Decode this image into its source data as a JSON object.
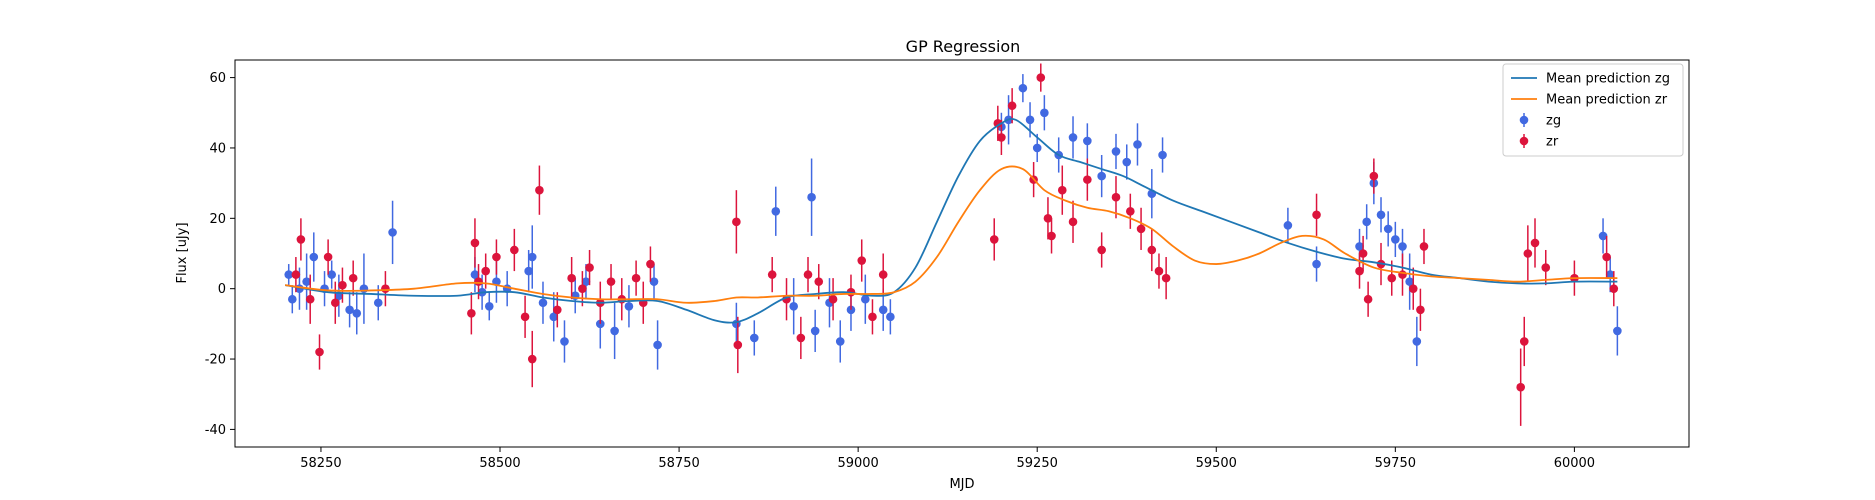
{
  "chart_data": {
    "type": "scatter",
    "title": "GP Regression",
    "xlabel": "MJD",
    "ylabel": "Flux [uJy]",
    "xlim": [
      58130,
      60160
    ],
    "ylim": [
      -45,
      65
    ],
    "xticks": [
      58250,
      58500,
      58750,
      59000,
      59250,
      59500,
      59750,
      60000
    ],
    "yticks": [
      -40,
      -20,
      0,
      20,
      40,
      60
    ],
    "grid": false,
    "legend_position": "top-right",
    "series": [
      {
        "name": "Mean prediction zg",
        "kind": "line",
        "color": "#1f77b4",
        "x": [
          58200,
          58260,
          58320,
          58380,
          58440,
          58480,
          58520,
          58560,
          58600,
          58640,
          58680,
          58720,
          58760,
          58800,
          58830,
          58860,
          58900,
          58940,
          58980,
          59020,
          59050,
          59080,
          59110,
          59140,
          59170,
          59200,
          59220,
          59250,
          59280,
          59310,
          59340,
          59370,
          59400,
          59440,
          59480,
          59520,
          59560,
          59600,
          59640,
          59680,
          59720,
          59760,
          59800,
          59840,
          59880,
          59920,
          59960,
          60000,
          60060
        ],
        "y": [
          1,
          -1,
          -1.5,
          -2,
          -2,
          -1,
          -1,
          -2.5,
          -3.5,
          -4,
          -3.5,
          -3.5,
          -6,
          -9,
          -9.5,
          -7,
          -2.5,
          -1.5,
          -1,
          -2,
          -1,
          6,
          19,
          32,
          42,
          47,
          48,
          43,
          38,
          36,
          34,
          32,
          29,
          25,
          22,
          19,
          16,
          13,
          10.5,
          8.5,
          7.5,
          6,
          4,
          3,
          2,
          1.5,
          1.5,
          2,
          2
        ]
      },
      {
        "name": "Mean prediction zr",
        "kind": "line",
        "color": "#ff7f0e",
        "x": [
          58200,
          58260,
          58320,
          58380,
          58440,
          58480,
          58520,
          58560,
          58600,
          58640,
          58680,
          58720,
          58760,
          58800,
          58830,
          58860,
          58900,
          58940,
          58980,
          59020,
          59050,
          59080,
          59110,
          59140,
          59170,
          59200,
          59230,
          59260,
          59290,
          59320,
          59350,
          59380,
          59410,
          59440,
          59470,
          59500,
          59530,
          59560,
          59590,
          59620,
          59650,
          59680,
          59720,
          59760,
          59800,
          59840,
          59880,
          59920,
          59960,
          60000,
          60060
        ],
        "y": [
          1,
          -0.5,
          -0.5,
          0,
          1.5,
          1.5,
          0,
          -1.5,
          -2.5,
          -3,
          -3,
          -3,
          -4,
          -3.5,
          -2.5,
          -2.5,
          -2,
          -2,
          -1.5,
          -1.5,
          -1,
          2,
          9,
          19,
          28,
          34,
          34,
          28,
          25,
          23,
          22,
          20,
          17,
          12,
          8,
          7,
          8,
          10,
          13,
          15,
          14,
          10,
          6,
          4.5,
          3.5,
          3,
          2.5,
          2,
          2.5,
          3,
          3
        ]
      },
      {
        "name": "zg",
        "kind": "errorbar",
        "color": "#4169e1",
        "x": [
          58205,
          58210,
          58220,
          58230,
          58240,
          58255,
          58265,
          58275,
          58290,
          58300,
          58310,
          58330,
          58350,
          58465,
          58475,
          58485,
          58495,
          58510,
          58540,
          58545,
          58560,
          58575,
          58590,
          58605,
          58620,
          58640,
          58660,
          58680,
          58715,
          58720,
          58830,
          58855,
          58885,
          58910,
          58935,
          58940,
          58960,
          58975,
          58990,
          59010,
          59035,
          59045,
          59200,
          59210,
          59230,
          59240,
          59250,
          59260,
          59280,
          59300,
          59320,
          59340,
          59360,
          59375,
          59390,
          59410,
          59425,
          59600,
          59640,
          59700,
          59710,
          59720,
          59730,
          59740,
          59750,
          59760,
          59770,
          59780,
          60040,
          60050,
          60060
        ],
        "y": [
          4,
          -3,
          0,
          2,
          9,
          0,
          4,
          -2,
          -6,
          -7,
          0,
          -4,
          16,
          4,
          -1,
          -5,
          2,
          0,
          5,
          9,
          -4,
          -8,
          -15,
          -2,
          2,
          -10,
          -12,
          -5,
          2,
          -16,
          -10,
          -14,
          22,
          -5,
          26,
          -12,
          -4,
          -15,
          -6,
          -3,
          -6,
          -8,
          46,
          48,
          57,
          48,
          40,
          50,
          38,
          43,
          42,
          32,
          39,
          36,
          41,
          27,
          38,
          18,
          7,
          12,
          19,
          30,
          21,
          17,
          14,
          12,
          2,
          -15,
          15,
          4,
          -12
        ],
        "yerr": [
          3,
          4,
          6,
          8,
          7,
          5,
          4,
          6,
          5,
          6,
          10,
          5,
          9,
          5,
          5,
          4,
          6,
          5,
          6,
          9,
          6,
          7,
          6,
          5,
          5,
          7,
          8,
          6,
          5,
          7,
          6,
          5,
          7,
          8,
          11,
          6,
          7,
          6,
          6,
          7,
          6,
          5,
          4,
          7,
          4,
          5,
          4,
          5,
          5,
          6,
          5,
          6,
          5,
          5,
          6,
          7,
          5,
          5,
          5,
          5,
          5,
          6,
          5,
          5,
          5,
          5,
          8,
          7,
          5,
          5,
          7
        ]
      },
      {
        "name": "zr",
        "kind": "errorbar",
        "color": "#dc143c",
        "x": [
          58215,
          58222,
          58235,
          58248,
          58260,
          58270,
          58280,
          58295,
          58340,
          58460,
          58465,
          58470,
          58480,
          58495,
          58520,
          58535,
          58545,
          58555,
          58580,
          58600,
          58615,
          58625,
          58640,
          58655,
          58670,
          58690,
          58700,
          58710,
          58830,
          58832,
          58880,
          58900,
          58920,
          58930,
          58945,
          58965,
          58990,
          59005,
          59020,
          59035,
          59190,
          59195,
          59200,
          59215,
          59245,
          59255,
          59265,
          59270,
          59285,
          59300,
          59320,
          59340,
          59360,
          59380,
          59395,
          59410,
          59420,
          59430,
          59640,
          59700,
          59705,
          59712,
          59720,
          59730,
          59745,
          59760,
          59775,
          59785,
          59790,
          59925,
          59930,
          59935,
          59945,
          59960,
          60000,
          60045,
          60055
        ],
        "y": [
          4,
          14,
          -3,
          -18,
          9,
          -4,
          1,
          3,
          0,
          -7,
          13,
          2,
          5,
          9,
          11,
          -8,
          -20,
          28,
          -6,
          3,
          0,
          6,
          -4,
          2,
          -3,
          3,
          -4,
          7,
          19,
          -16,
          4,
          -3,
          -14,
          4,
          2,
          -3,
          -1,
          8,
          -8,
          4,
          14,
          47,
          43,
          52,
          31,
          60,
          20,
          15,
          28,
          19,
          31,
          11,
          26,
          22,
          17,
          11,
          5,
          3,
          21,
          5,
          10,
          -3,
          32,
          7,
          3,
          4,
          0,
          -6,
          12,
          -28,
          -15,
          10,
          13,
          6,
          3,
          9,
          0
        ],
        "yerr": [
          5,
          6,
          7,
          5,
          5,
          6,
          5,
          5,
          5,
          6,
          7,
          5,
          5,
          5,
          6,
          6,
          8,
          7,
          5,
          6,
          5,
          5,
          6,
          5,
          6,
          5,
          6,
          5,
          9,
          8,
          5,
          6,
          6,
          5,
          5,
          6,
          5,
          6,
          5,
          6,
          6,
          5,
          5,
          5,
          5,
          4,
          6,
          5,
          7,
          6,
          6,
          5,
          6,
          5,
          6,
          6,
          5,
          6,
          6,
          5,
          5,
          5,
          5,
          6,
          5,
          6,
          6,
          6,
          5,
          11,
          7,
          8,
          7,
          5,
          5,
          6,
          5
        ]
      }
    ]
  }
}
